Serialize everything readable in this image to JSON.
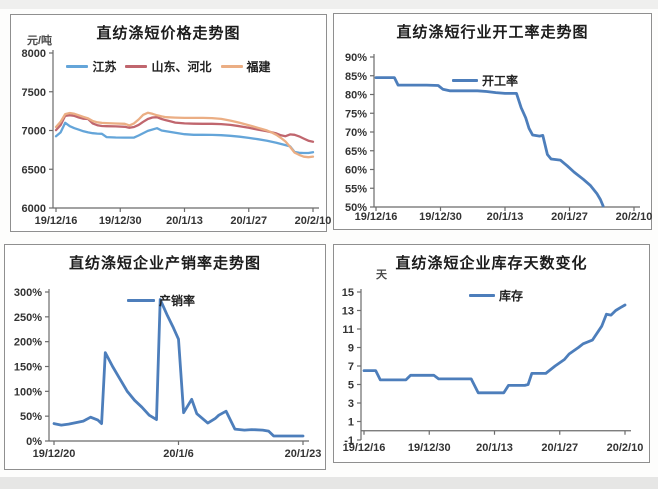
{
  "page": {
    "background": "#ffffff",
    "frame_color": "#8f8f8f",
    "bottom_strip_color": "#e6e6e5"
  },
  "chart_data": [
    {
      "id": "price-trend",
      "type": "line",
      "title": "直纺涤短价格走势图",
      "unit_label": "元/吨",
      "xlim": [
        0,
        56
      ],
      "ylim": [
        6000,
        8000
      ],
      "grid": false,
      "legend_position": "top-center",
      "x_axis_at": 6000,
      "y_tick_labels": [
        "8000",
        "7500",
        "7000",
        "6500",
        "6000"
      ],
      "y_tick_values": [
        8000,
        7500,
        7000,
        6500,
        6000
      ],
      "x_tick_labels": [
        "19/12/16",
        "19/12/30",
        "20/1/13",
        "20/1/27",
        "20/2/10"
      ],
      "x_tick_positions": [
        0,
        14,
        28,
        42,
        56
      ],
      "series": [
        {
          "name": "江苏",
          "color": "#64a5d9",
          "points": [
            [
              0,
              6925
            ],
            [
              1,
              6975
            ],
            [
              2,
              7100
            ],
            [
              3,
              7055
            ],
            [
              4,
              7030
            ],
            [
              5,
              7010
            ],
            [
              6,
              6990
            ],
            [
              7,
              6975
            ],
            [
              8,
              6965
            ],
            [
              9,
              6960
            ],
            [
              10,
              6958
            ],
            [
              11,
              6915
            ],
            [
              13,
              6910
            ],
            [
              15,
              6908
            ],
            [
              17,
              6908
            ],
            [
              18,
              6935
            ],
            [
              20,
              6995
            ],
            [
              22,
              7030
            ],
            [
              23,
              7000
            ],
            [
              24,
              6990
            ],
            [
              26,
              6970
            ],
            [
              28,
              6952
            ],
            [
              30,
              6945
            ],
            [
              32,
              6945
            ],
            [
              34,
              6943
            ],
            [
              36,
              6940
            ],
            [
              38,
              6932
            ],
            [
              40,
              6920
            ],
            [
              42,
              6905
            ],
            [
              44,
              6888
            ],
            [
              46,
              6868
            ],
            [
              48,
              6842
            ],
            [
              50,
              6812
            ],
            [
              51,
              6795
            ],
            [
              52,
              6722
            ],
            [
              53,
              6712
            ],
            [
              54,
              6710
            ],
            [
              55,
              6710
            ],
            [
              56,
              6720
            ]
          ]
        },
        {
          "name": "山东、河北",
          "color": "#c0666e",
          "points": [
            [
              0,
              7005
            ],
            [
              1,
              7070
            ],
            [
              2,
              7190
            ],
            [
              3,
              7198
            ],
            [
              4,
              7188
            ],
            [
              5,
              7168
            ],
            [
              6,
              7152
            ],
            [
              7,
              7148
            ],
            [
              8,
              7092
            ],
            [
              9,
              7068
            ],
            [
              10,
              7058
            ],
            [
              11,
              7055
            ],
            [
              13,
              7053
            ],
            [
              15,
              7048
            ],
            [
              16,
              7035
            ],
            [
              17,
              7045
            ],
            [
              18,
              7072
            ],
            [
              19,
              7112
            ],
            [
              20,
              7148
            ],
            [
              21,
              7168
            ],
            [
              22,
              7172
            ],
            [
              23,
              7148
            ],
            [
              24,
              7132
            ],
            [
              25,
              7118
            ],
            [
              26,
              7102
            ],
            [
              28,
              7092
            ],
            [
              30,
              7088
            ],
            [
              32,
              7086
            ],
            [
              34,
              7086
            ],
            [
              36,
              7082
            ],
            [
              38,
              7072
            ],
            [
              40,
              7056
            ],
            [
              42,
              7035
            ],
            [
              44,
              7012
            ],
            [
              46,
              6990
            ],
            [
              48,
              6962
            ],
            [
              49,
              6938
            ],
            [
              50,
              6926
            ],
            [
              51,
              6950
            ],
            [
              52,
              6944
            ],
            [
              53,
              6924
            ],
            [
              54,
              6895
            ],
            [
              55,
              6868
            ],
            [
              56,
              6855
            ]
          ]
        },
        {
          "name": "福建",
          "color": "#ebae84",
          "points": [
            [
              0,
              7045
            ],
            [
              1,
              7112
            ],
            [
              2,
              7212
            ],
            [
              3,
              7226
            ],
            [
              4,
              7216
            ],
            [
              5,
              7196
            ],
            [
              6,
              7176
            ],
            [
              7,
              7156
            ],
            [
              8,
              7122
            ],
            [
              9,
              7106
            ],
            [
              10,
              7098
            ],
            [
              11,
              7095
            ],
            [
              13,
              7090
            ],
            [
              15,
              7086
            ],
            [
              16,
              7066
            ],
            [
              17,
              7092
            ],
            [
              18,
              7142
            ],
            [
              19,
              7202
            ],
            [
              20,
              7228
            ],
            [
              21,
              7216
            ],
            [
              22,
              7196
            ],
            [
              23,
              7182
            ],
            [
              24,
              7172
            ],
            [
              26,
              7166
            ],
            [
              28,
              7163
            ],
            [
              30,
              7162
            ],
            [
              32,
              7162
            ],
            [
              34,
              7160
            ],
            [
              36,
              7150
            ],
            [
              38,
              7128
            ],
            [
              40,
              7100
            ],
            [
              42,
              7068
            ],
            [
              44,
              7035
            ],
            [
              46,
              7000
            ],
            [
              47,
              6974
            ],
            [
              48,
              6945
            ],
            [
              49,
              6905
            ],
            [
              50,
              6858
            ],
            [
              51,
              6788
            ],
            [
              52,
              6715
            ],
            [
              53,
              6685
            ],
            [
              54,
              6662
            ],
            [
              55,
              6655
            ],
            [
              56,
              6663
            ]
          ]
        }
      ]
    },
    {
      "id": "operating-rate",
      "type": "line",
      "title": "直纺涤短行业开工率走势图",
      "unit_label": "",
      "xlim": [
        0,
        56
      ],
      "ylim": [
        50,
        90
      ],
      "grid": false,
      "legend_position": "inside-top-center",
      "x_axis_at": 50,
      "y_tick_labels": [
        "90%",
        "85%",
        "80%",
        "75%",
        "70%",
        "65%",
        "60%",
        "55%",
        "50%"
      ],
      "y_tick_values": [
        90,
        85,
        80,
        75,
        70,
        65,
        60,
        55,
        50
      ],
      "x_tick_labels": [
        "19/12/16",
        "19/12/30",
        "20/1/13",
        "20/1/27",
        "20/2/10"
      ],
      "x_tick_positions": [
        0,
        14,
        28,
        42,
        56
      ],
      "series": [
        {
          "name": "开工率",
          "color": "#4d7ebb",
          "points": [
            [
              0,
              84.5
            ],
            [
              2,
              84.5
            ],
            [
              4,
              84.5
            ],
            [
              4.8,
              82.5
            ],
            [
              8,
              82.5
            ],
            [
              11,
              82.5
            ],
            [
              13.5,
              82.4
            ],
            [
              14.5,
              81.4
            ],
            [
              16,
              81
            ],
            [
              18,
              81
            ],
            [
              20,
              81
            ],
            [
              22,
              81
            ],
            [
              24,
              80.8
            ],
            [
              26,
              80.5
            ],
            [
              28,
              80.3
            ],
            [
              30.5,
              80.3
            ],
            [
              31.5,
              76.5
            ],
            [
              32.5,
              73.8
            ],
            [
              33.2,
              71
            ],
            [
              34,
              69.2
            ],
            [
              35.5,
              68.9
            ],
            [
              36.2,
              69.1
            ],
            [
              37.2,
              64
            ],
            [
              38,
              62.8
            ],
            [
              40,
              62.5
            ],
            [
              41.5,
              61
            ],
            [
              43,
              59.3
            ],
            [
              45,
              57.4
            ],
            [
              46.5,
              55.8
            ],
            [
              48,
              53.5
            ],
            [
              48.7,
              52
            ],
            [
              49.3,
              50.3
            ]
          ]
        }
      ]
    },
    {
      "id": "sales-ratio",
      "type": "line",
      "title": "直纺涤短企业产销率走势图",
      "unit_label": "",
      "xlim": [
        0,
        34
      ],
      "ylim": [
        0,
        300
      ],
      "grid": false,
      "legend_position": "inside-top-center",
      "x_axis_at": 0,
      "y_tick_labels": [
        "300%",
        "250%",
        "200%",
        "150%",
        "100%",
        "50%",
        "0%"
      ],
      "y_tick_values": [
        300,
        250,
        200,
        150,
        100,
        50,
        0
      ],
      "x_tick_labels": [
        "19/12/20",
        "20/1/6",
        "20/1/23"
      ],
      "x_tick_positions": [
        0,
        17,
        34
      ],
      "series": [
        {
          "name": "产销率",
          "color": "#4d7ebb",
          "points": [
            [
              0,
              35
            ],
            [
              1,
              32
            ],
            [
              2,
              34
            ],
            [
              3,
              37
            ],
            [
              4,
              40
            ],
            [
              5,
              48
            ],
            [
              6,
              42
            ],
            [
              6.5,
              35
            ],
            [
              7,
              178
            ],
            [
              8,
              150
            ],
            [
              9,
              125
            ],
            [
              10,
              100
            ],
            [
              11,
              82
            ],
            [
              12,
              68
            ],
            [
              13,
              52
            ],
            [
              14,
              43
            ],
            [
              14.5,
              285
            ],
            [
              15.5,
              252
            ],
            [
              16.3,
              228
            ],
            [
              17,
              205
            ],
            [
              17.7,
              57
            ],
            [
              18.8,
              84
            ],
            [
              19.5,
              55
            ],
            [
              21,
              36
            ],
            [
              22,
              45
            ],
            [
              22.5,
              52
            ],
            [
              23.5,
              60
            ],
            [
              24.7,
              24
            ],
            [
              26,
              22
            ],
            [
              27,
              23
            ],
            [
              28.5,
              22
            ],
            [
              29.3,
              20
            ],
            [
              30,
              10
            ],
            [
              31,
              10
            ],
            [
              32,
              10
            ],
            [
              33,
              10
            ],
            [
              34,
              10
            ]
          ]
        }
      ]
    },
    {
      "id": "inventory-days",
      "type": "line",
      "title": "直纺涤短企业库存天数变化",
      "unit_label": "天",
      "xlim": [
        0,
        56
      ],
      "ylim": [
        -1,
        15
      ],
      "grid": false,
      "legend_position": "inside-top-center",
      "x_axis_at": 0,
      "y_tick_labels": [
        "15",
        "13",
        "11",
        "9",
        "7",
        "5",
        "3",
        "1",
        "-1"
      ],
      "y_tick_values": [
        15,
        13,
        11,
        9,
        7,
        5,
        3,
        1,
        -1
      ],
      "x_tick_labels": [
        "19/12/16",
        "19/12/30",
        "20/1/13",
        "20/1/27",
        "20/2/10"
      ],
      "x_tick_positions": [
        0,
        14,
        28,
        42,
        56
      ],
      "series": [
        {
          "name": "库存",
          "color": "#4d7ebb",
          "points": [
            [
              0,
              6.5
            ],
            [
              2.5,
              6.5
            ],
            [
              3.5,
              5.5
            ],
            [
              9,
              5.5
            ],
            [
              10,
              6
            ],
            [
              15,
              6
            ],
            [
              16,
              5.6
            ],
            [
              23,
              5.6
            ],
            [
              24.5,
              4.1
            ],
            [
              30,
              4.1
            ],
            [
              31,
              4.9
            ],
            [
              34.5,
              4.9
            ],
            [
              35.2,
              5
            ],
            [
              36,
              6.2
            ],
            [
              39,
              6.2
            ],
            [
              41,
              7
            ],
            [
              43,
              7.7
            ],
            [
              44,
              8.3
            ],
            [
              46,
              9
            ],
            [
              47,
              9.4
            ],
            [
              49,
              9.8
            ],
            [
              51,
              11.3
            ],
            [
              52,
              12.6
            ],
            [
              53,
              12.5
            ],
            [
              54,
              13
            ],
            [
              55,
              13.3
            ],
            [
              56,
              13.6
            ]
          ]
        }
      ]
    }
  ]
}
